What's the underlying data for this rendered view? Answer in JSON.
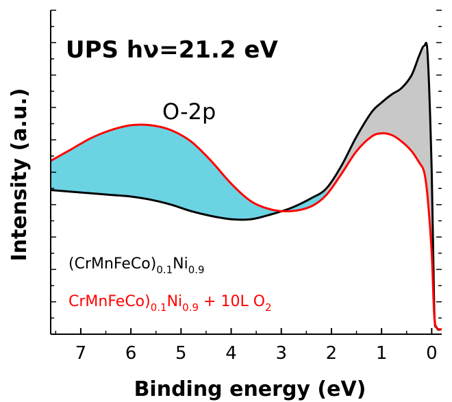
{
  "chart_data": {
    "type": "area",
    "title": "UPS  hν=21.2 eV",
    "xlabel": "Binding energy (eV)",
    "ylabel": "Intensity (a.u.)",
    "xlim": [
      7.6,
      -0.2
    ],
    "ylim": [
      0,
      1
    ],
    "x_reversed": true,
    "y_ticks_labeled": false,
    "grid": false,
    "x_ticks": [
      "7",
      "6",
      "5",
      "4",
      "3",
      "2",
      "1",
      "0"
    ],
    "annotation": "O-2p",
    "series": [
      {
        "name_main": "(CrMnFeCo)",
        "name_sub1": "0.1",
        "name_mid": "Ni",
        "name_sub2": "0.9",
        "name_tail": "",
        "name_sub3": "",
        "color": "#000000",
        "x": [
          7.6,
          7.2,
          6.8,
          6.4,
          6.0,
          5.6,
          5.2,
          4.8,
          4.4,
          4.0,
          3.6,
          3.2,
          2.8,
          2.4,
          2.1,
          1.8,
          1.5,
          1.2,
          1.0,
          0.8,
          0.6,
          0.4,
          0.25,
          0.15,
          0.08,
          0.0,
          -0.05,
          -0.1,
          -0.2
        ],
        "values": [
          0.445,
          0.44,
          0.435,
          0.43,
          0.425,
          0.415,
          0.4,
          0.38,
          0.365,
          0.355,
          0.355,
          0.37,
          0.39,
          0.42,
          0.45,
          0.52,
          0.61,
          0.685,
          0.715,
          0.74,
          0.76,
          0.8,
          0.86,
          0.89,
          0.86,
          0.5,
          0.08,
          0.02,
          0.015
        ]
      },
      {
        "name_main": "CrMnFeCo)",
        "name_sub1": "0.1",
        "name_mid": "Ni",
        "name_sub2": "0.9",
        "name_tail": " + 10L O",
        "name_sub3": "2",
        "color": "#ff0000",
        "x": [
          7.6,
          7.2,
          6.8,
          6.4,
          6.0,
          5.6,
          5.2,
          4.8,
          4.4,
          4.0,
          3.6,
          3.2,
          2.8,
          2.4,
          2.1,
          1.8,
          1.5,
          1.2,
          1.0,
          0.8,
          0.6,
          0.4,
          0.25,
          0.15,
          0.08,
          0.0,
          -0.05,
          -0.1,
          -0.2
        ],
        "values": [
          0.535,
          0.57,
          0.605,
          0.63,
          0.645,
          0.645,
          0.63,
          0.595,
          0.535,
          0.465,
          0.41,
          0.385,
          0.38,
          0.395,
          0.43,
          0.495,
          0.565,
          0.61,
          0.62,
          0.615,
          0.595,
          0.565,
          0.53,
          0.5,
          0.42,
          0.25,
          0.06,
          0.02,
          0.015
        ]
      }
    ],
    "fills": [
      {
        "between": "red-above-black",
        "color": "#6cd3e3",
        "x_from": 7.6,
        "x_to": 2.1
      },
      {
        "between": "black-above-red",
        "color": "#c8c8c8",
        "x_from": 2.1,
        "x_to": -0.2
      }
    ]
  }
}
